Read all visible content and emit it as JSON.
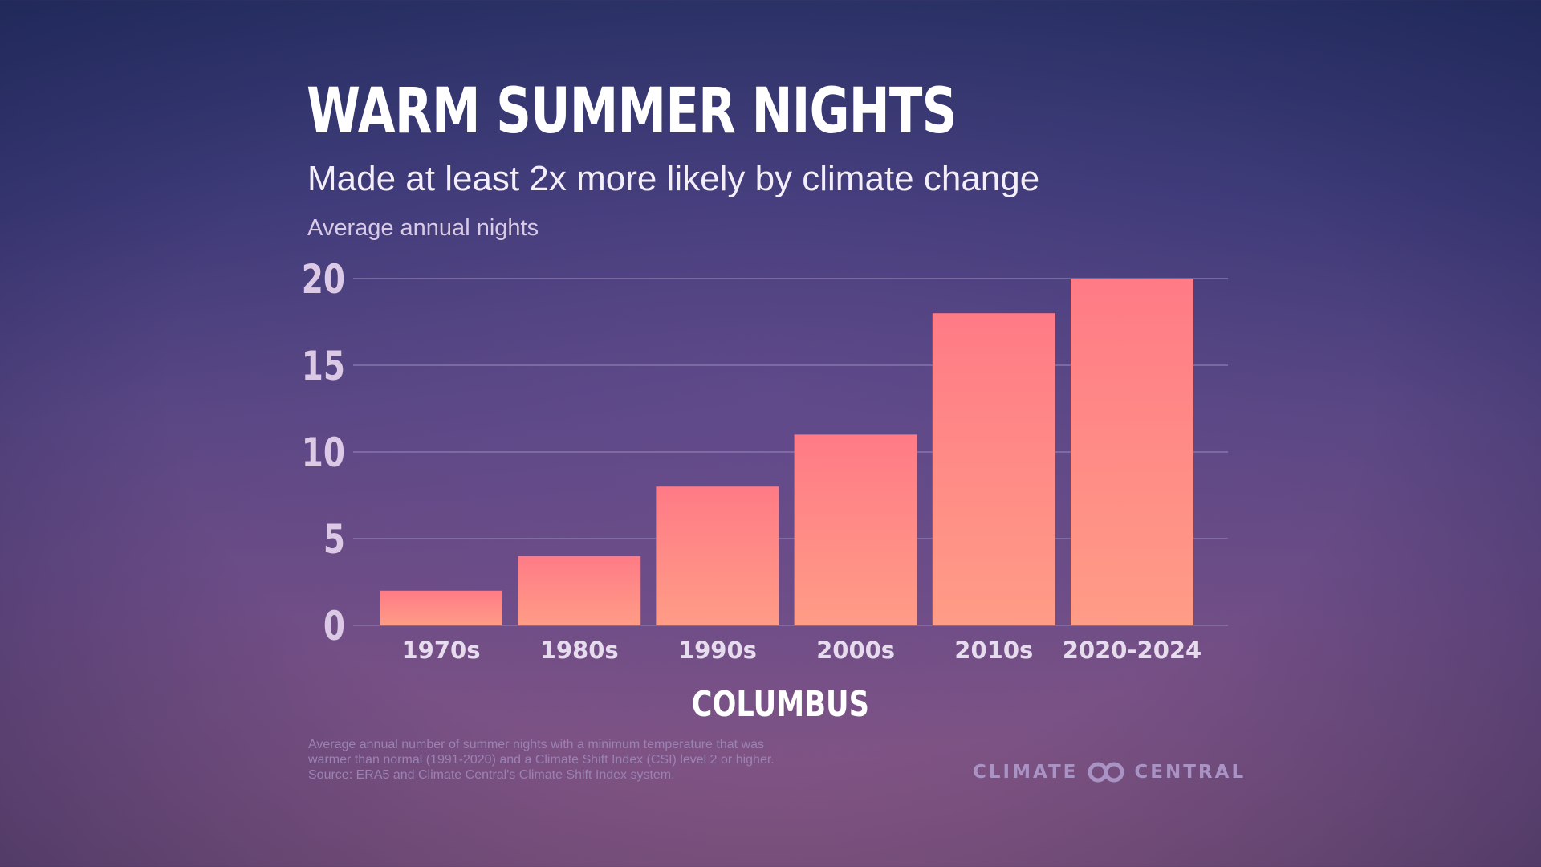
{
  "header": {
    "title": "WARM SUMMER NIGHTS",
    "subtitle": "Made at least 2x more likely by climate change"
  },
  "chart_data": {
    "type": "bar",
    "categories": [
      "1970s",
      "1980s",
      "1990s",
      "2000s",
      "2010s",
      "2020-2024"
    ],
    "values": [
      2,
      4,
      8,
      11,
      18,
      20
    ],
    "ylabel": "Average annual nights",
    "xlabel": "COLUMBUS",
    "ylim": [
      0,
      20
    ],
    "yticks": [
      0,
      5,
      10,
      15,
      20
    ],
    "grid": true,
    "colors": {
      "bar_top": "#ff7b86",
      "bar_bottom": "#ff9c86",
      "gridline": "#8e7fb2"
    }
  },
  "footnote": {
    "lines": [
      "Average annual number of summer nights with a minimum temperature that was",
      "warmer than normal (1991-2020) and a Climate Shift Index (CSI) level 2 or higher.",
      "Source: ERA5 and Climate Central's Climate Shift Index system."
    ]
  },
  "brand": {
    "left": "CLIMATE",
    "right": "CENTRAL",
    "icon": "climate-central-logo-icon"
  }
}
